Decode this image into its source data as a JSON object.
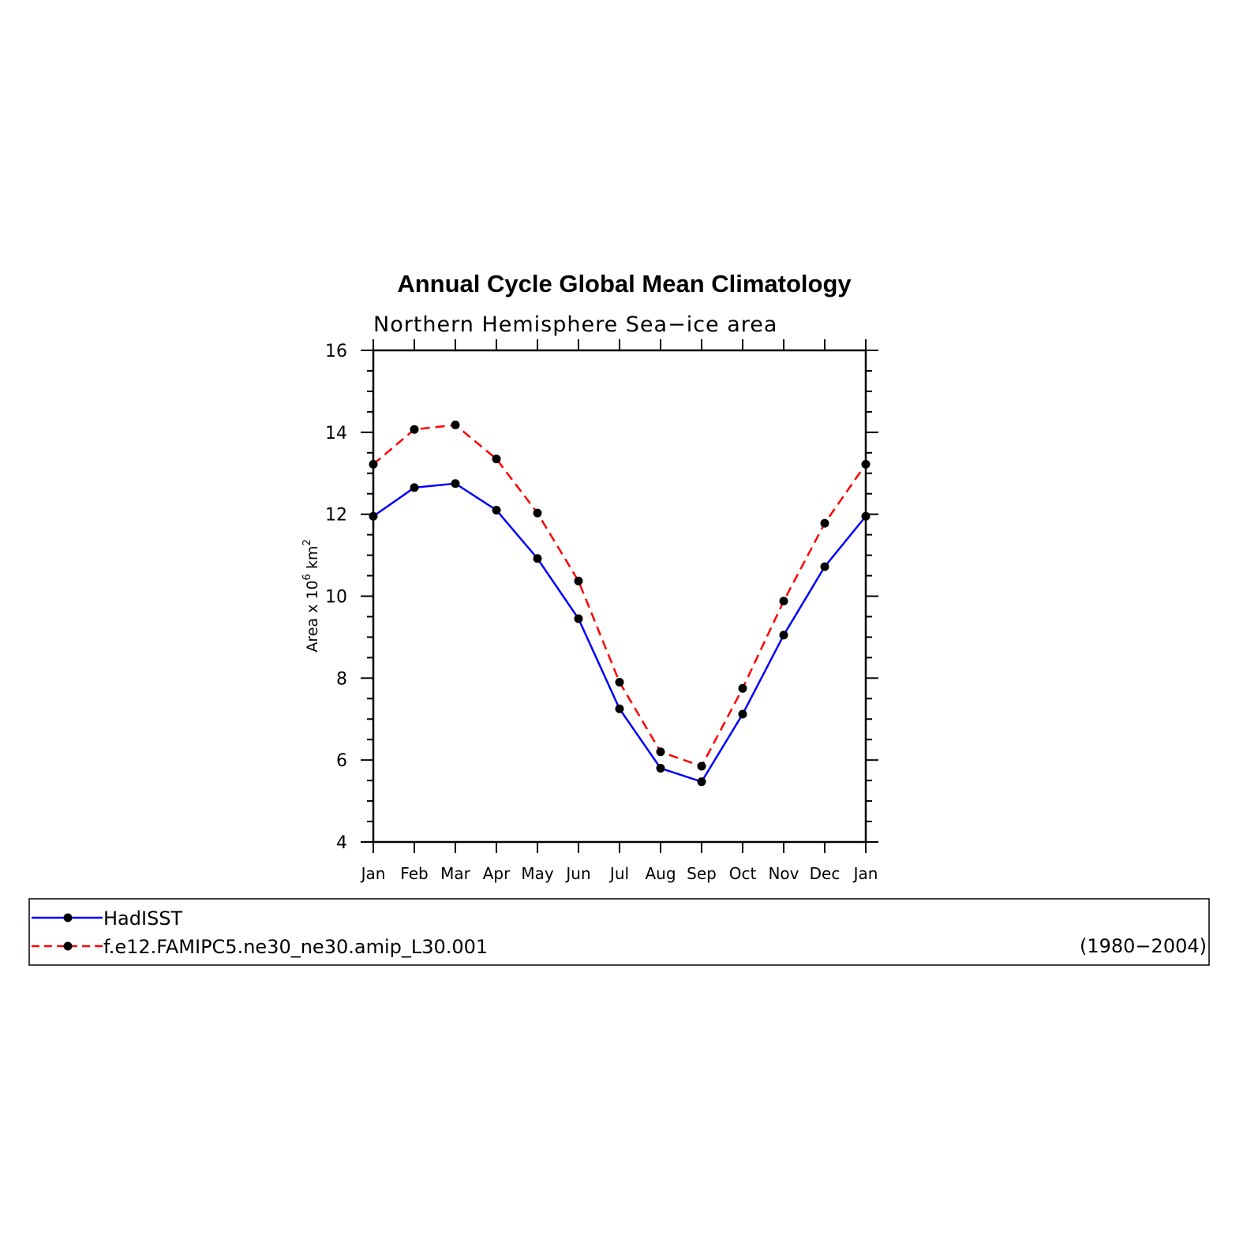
{
  "chart_data": {
    "type": "line",
    "title": "Annual Cycle Global Mean Climatology",
    "subtitle": "Northern Hemisphere Sea−ice area",
    "ylabel_prefix": "Area x 10",
    "ylabel_exp": "6",
    "ylabel_unit": " km",
    "ylabel_unit_exp": "2",
    "ylim": [
      4,
      16
    ],
    "yticks": [
      4,
      6,
      8,
      10,
      12,
      14,
      16
    ],
    "categories": [
      "Jan",
      "Feb",
      "Mar",
      "Apr",
      "May",
      "Jun",
      "Jul",
      "Aug",
      "Sep",
      "Oct",
      "Nov",
      "Dec",
      "Jan"
    ],
    "series": [
      {
        "name": "HadISST",
        "color": "#0000ff",
        "dash": "solid",
        "values": [
          11.95,
          12.65,
          12.75,
          12.1,
          10.92,
          9.45,
          7.25,
          5.8,
          5.47,
          7.12,
          9.05,
          10.72,
          11.95
        ]
      },
      {
        "name": "f.e12.FAMIPC5.ne30_ne30.amip_L30.001",
        "color": "#ff0000",
        "dash": "dashed",
        "values": [
          13.22,
          14.07,
          14.18,
          13.35,
          12.03,
          10.37,
          7.9,
          6.2,
          5.85,
          7.75,
          9.88,
          11.78,
          13.22
        ]
      }
    ],
    "legend": {
      "placement": "bottom",
      "period": "(1980−2004)"
    }
  }
}
